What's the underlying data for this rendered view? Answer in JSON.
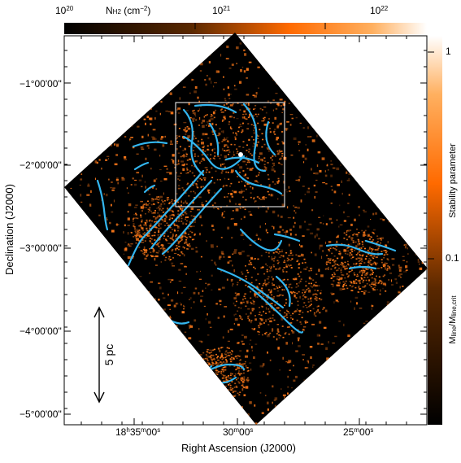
{
  "colorbar_top": {
    "quantity": "N",
    "quantity_sub": "H2",
    "unit": "(cm",
    "unit_exp": "−2",
    "unit_close": ")",
    "ticks": [
      {
        "base": "10",
        "exp": "20"
      },
      {
        "base": "10",
        "exp": "21"
      },
      {
        "base": "10",
        "exp": "22"
      }
    ]
  },
  "colorbar_right": {
    "label_top": "Stability parameter",
    "label_bottom_prefix": "M",
    "label_bottom_sub1": "line",
    "label_bottom_mid": "/M",
    "label_bottom_sub2": "line,crit",
    "ticks": [
      "1",
      "0.1"
    ]
  },
  "axes": {
    "ylabel": "Declination (J2000)",
    "xlabel": "Right Ascension (J2000)",
    "yticks": [
      {
        "deg": "−1",
        "rest": "°00'00\""
      },
      {
        "deg": "−2",
        "rest": "°00'00\""
      },
      {
        "deg": "−3",
        "rest": "°00'00\""
      },
      {
        "deg": "−4",
        "rest": "°00'00\""
      },
      {
        "deg": "−5",
        "rest": "°00'00\""
      }
    ],
    "xticks": [
      {
        "h": "18",
        "hu": "h",
        "m": "35",
        "mu": "m",
        "s": "00",
        "su": "s"
      },
      {
        "m": "30",
        "mu": "m",
        "s": "00",
        "su": "s"
      },
      {
        "m": "25",
        "mu": "m",
        "s": "00",
        "su": "s"
      }
    ]
  },
  "scalebar": {
    "label": "5 pc"
  },
  "colors": {
    "map_background": "#000000",
    "emission": "#ff7a1a",
    "filaments": "#33b6f0",
    "box": "#ffffff"
  }
}
